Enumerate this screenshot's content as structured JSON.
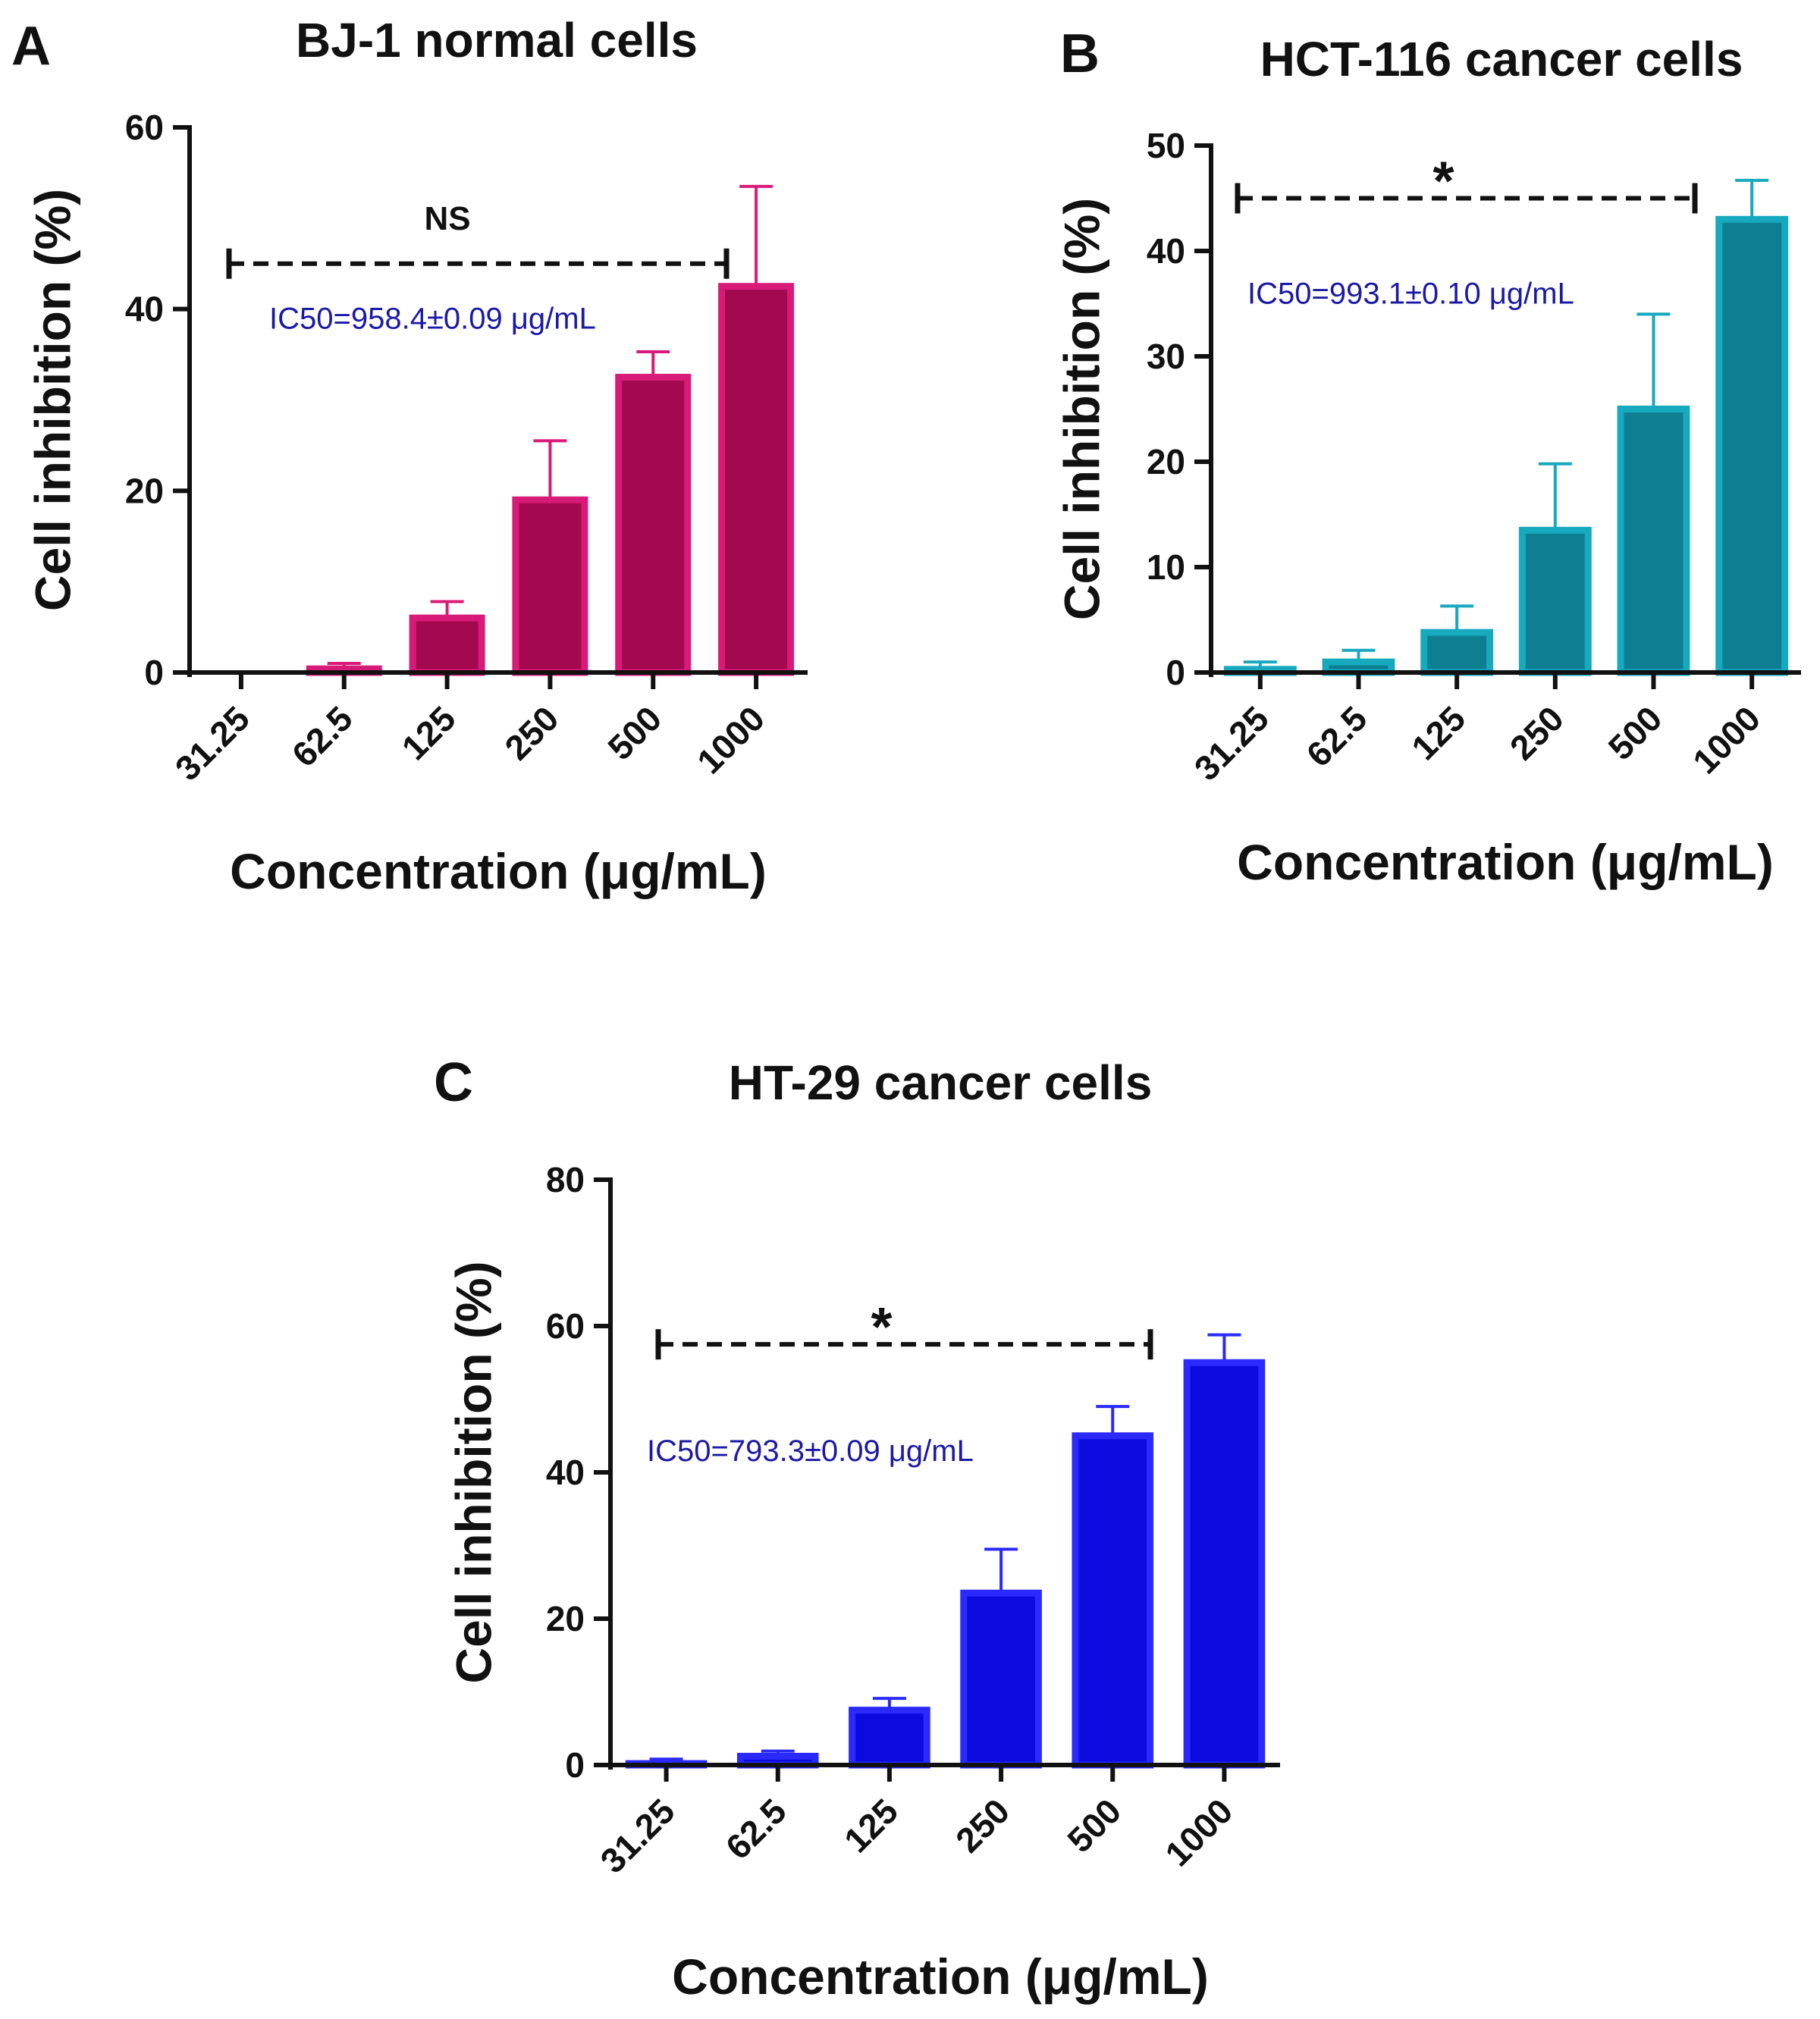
{
  "chart_data": [
    {
      "type": "bar",
      "panel": "A",
      "title": "BJ-1 normal cells",
      "xlabel": "Concentration (μg/mL)",
      "ylabel": "Cell inhibition (%)",
      "categories": [
        "31.25",
        "62.5",
        "125",
        "250",
        "500",
        "1000"
      ],
      "values": [
        0,
        0.4,
        6.0,
        19.0,
        32.5,
        42.5
      ],
      "errors": [
        0,
        0.6,
        1.8,
        6.5,
        2.8,
        11.0
      ],
      "ylim": [
        0,
        60
      ],
      "yticks": [
        0,
        20,
        40,
        60
      ],
      "colors": {
        "fill": "#a3094f",
        "stroke": "#d81b78"
      },
      "significance": {
        "label": "NS",
        "from": "31.25",
        "to": "1000",
        "level": 45
      },
      "ic50": {
        "text": "IC50=958.4±0.09 μg/mL",
        "level": 39
      }
    },
    {
      "type": "bar",
      "panel": "B",
      "title": "HCT-116 cancer cells",
      "xlabel": "Concentration (μg/mL)",
      "ylabel": "Cell inhibition (%)",
      "categories": [
        "31.25",
        "62.5",
        "125",
        "250",
        "500",
        "1000"
      ],
      "values": [
        0.3,
        1.0,
        3.8,
        13.5,
        25.0,
        43.0
      ],
      "errors": [
        0.7,
        1.1,
        2.5,
        6.3,
        9.0,
        3.7
      ],
      "ylim": [
        0,
        50
      ],
      "yticks": [
        0,
        10,
        20,
        30,
        40,
        50
      ],
      "colors": {
        "fill": "#0e7f92",
        "stroke": "#17a9be"
      },
      "significance": {
        "label": "*",
        "from": "31.25",
        "to": "1000",
        "level": 45
      },
      "ic50": {
        "text": "IC50=993.1±0.10 μg/mL",
        "level": 36
      }
    },
    {
      "type": "bar",
      "panel": "C",
      "title": "HT-29 cancer cells",
      "xlabel": "Concentration (μg/mL)",
      "ylabel": "Cell inhibition (%)",
      "categories": [
        "31.25",
        "62.5",
        "125",
        "250",
        "500",
        "1000"
      ],
      "values": [
        0.2,
        1.2,
        7.5,
        23.5,
        45.0,
        55.0
      ],
      "errors": [
        0.6,
        0.7,
        1.6,
        6.0,
        4.0,
        3.8
      ],
      "ylim": [
        0,
        80
      ],
      "yticks": [
        0,
        20,
        40,
        60,
        80
      ],
      "colors": {
        "fill": "#0b0be0",
        "stroke": "#2a2aff"
      },
      "significance": {
        "label": "*",
        "from": "31.25",
        "to": "1000",
        "level": 57.5
      },
      "ic50": {
        "text": "IC50=793.3±0.09 μg/mL",
        "level": 43
      }
    }
  ]
}
